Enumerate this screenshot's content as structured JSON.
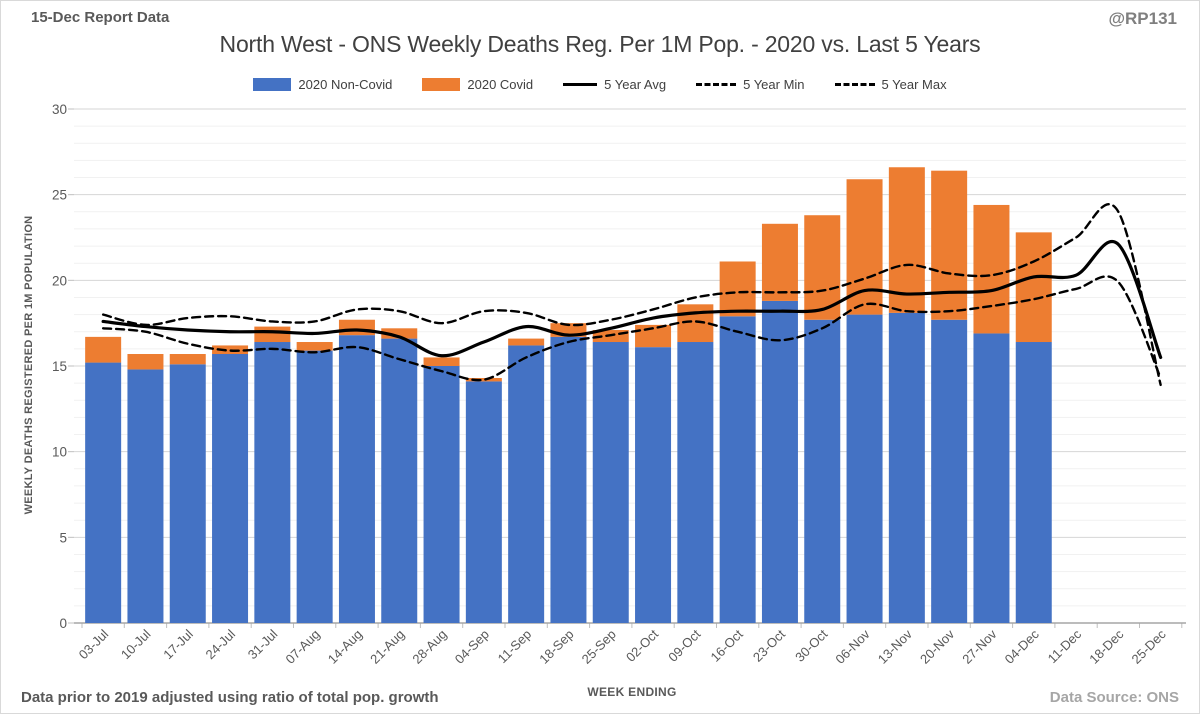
{
  "header": {
    "report_label": "15-Dec Report Data",
    "handle": "@RP131",
    "title": "North West - ONS Weekly Deaths Reg. Per 1M Pop. - 2020 vs. Last 5 Years"
  },
  "legend": {
    "items": [
      {
        "label": "2020 Non-Covid",
        "swatch": "bar",
        "color": "#4472C4"
      },
      {
        "label": "2020 Covid",
        "swatch": "bar",
        "color": "#ED7D31"
      },
      {
        "label": "5 Year Avg",
        "swatch": "line-solid",
        "color": "#000000"
      },
      {
        "label": "5 Year Min",
        "swatch": "line-dashed",
        "color": "#000000"
      },
      {
        "label": "5 Year Max",
        "swatch": "line-dashed",
        "color": "#000000"
      }
    ]
  },
  "footer": {
    "note": "Data prior to 2019 adjusted using ratio of total pop. growth",
    "source": "Data Source: ONS"
  },
  "chart_data": {
    "type": "bar",
    "subtype": "stacked bars with smoothed overlay lines",
    "title": "North West - ONS Weekly Deaths Reg. Per 1M Pop. - 2020 vs. Last 5 Years",
    "xlabel": "WEEK ENDING",
    "ylabel": "WEEKLY DEATHS REGISTERED PER 1M POPULATION",
    "ylim": [
      0,
      30
    ],
    "ytick_interval": 5,
    "minor_grid_interval": 1,
    "grid": "horizontal; minor light, major darker",
    "legend_position": "top",
    "colors": {
      "noncovid": "#4472C4",
      "covid": "#ED7D31",
      "line": "#000000",
      "major_grid": "#d6d6d6",
      "minor_grid": "#f1f1f1",
      "axis": "#a6a6a6",
      "tick": "#bfbfbf",
      "axis_text": "#595959"
    },
    "categories": [
      "03-Jul",
      "10-Jul",
      "17-Jul",
      "24-Jul",
      "31-Jul",
      "07-Aug",
      "14-Aug",
      "21-Aug",
      "28-Aug",
      "04-Sep",
      "11-Sep",
      "18-Sep",
      "25-Sep",
      "02-Oct",
      "09-Oct",
      "16-Oct",
      "23-Oct",
      "30-Oct",
      "06-Nov",
      "13-Nov",
      "20-Nov",
      "27-Nov",
      "04-Dec",
      "11-Dec",
      "18-Dec",
      "25-Dec"
    ],
    "series": [
      {
        "name": "2020 Non-Covid",
        "render": "bar-stacked",
        "color": "#4472C4",
        "values": [
          15.2,
          14.8,
          15.1,
          15.7,
          16.4,
          15.9,
          16.8,
          16.6,
          15.0,
          14.1,
          16.2,
          16.7,
          16.4,
          16.1,
          16.4,
          17.9,
          18.8,
          17.7,
          18.0,
          18.1,
          17.7,
          16.9,
          16.4,
          null,
          null,
          null
        ]
      },
      {
        "name": "2020 Covid",
        "render": "bar-stacked",
        "color": "#ED7D31",
        "values": [
          1.5,
          0.9,
          0.6,
          0.5,
          0.9,
          0.5,
          0.9,
          0.6,
          0.5,
          0.2,
          0.4,
          0.8,
          0.7,
          1.3,
          2.2,
          3.2,
          4.5,
          6.1,
          7.9,
          8.5,
          8.7,
          7.5,
          6.4,
          null,
          null,
          null
        ]
      },
      {
        "name": "5 Year Avg",
        "render": "line",
        "style": "solid",
        "color": "#000000",
        "values": [
          17.6,
          17.3,
          17.1,
          17.0,
          17.0,
          16.9,
          17.1,
          16.7,
          15.6,
          16.4,
          17.3,
          16.8,
          17.2,
          17.8,
          18.1,
          18.2,
          18.2,
          18.3,
          19.4,
          19.2,
          19.3,
          19.4,
          20.2,
          20.3,
          22.1,
          15.5
        ]
      },
      {
        "name": "5 Year Min",
        "render": "line",
        "style": "dashed",
        "color": "#000000",
        "values": [
          17.2,
          17.0,
          16.3,
          15.9,
          16.0,
          15.8,
          16.1,
          15.4,
          14.7,
          14.2,
          15.5,
          16.4,
          16.8,
          17.2,
          17.6,
          17.0,
          16.5,
          17.2,
          18.6,
          18.2,
          18.2,
          18.5,
          18.9,
          19.5,
          19.9,
          14.3
        ]
      },
      {
        "name": "5 Year Max",
        "render": "line",
        "style": "dashed",
        "color": "#000000",
        "values": [
          18.0,
          17.4,
          17.8,
          17.9,
          17.6,
          17.6,
          18.3,
          18.2,
          17.5,
          18.2,
          18.1,
          17.4,
          17.7,
          18.3,
          19.0,
          19.3,
          19.3,
          19.4,
          20.1,
          20.9,
          20.4,
          20.3,
          21.1,
          22.5,
          24.0,
          13.9
        ]
      }
    ]
  }
}
